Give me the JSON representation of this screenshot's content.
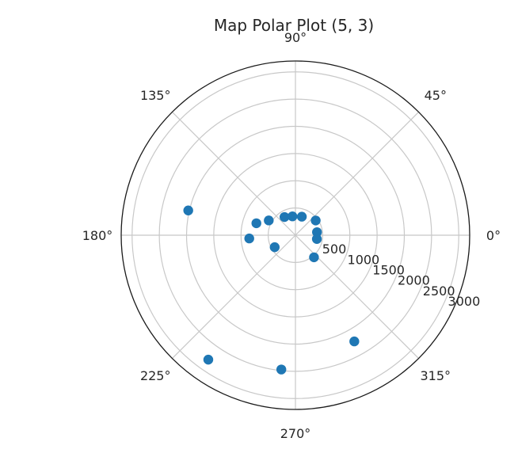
{
  "chart_data": {
    "type": "scatter",
    "projection": "polar",
    "title": "Map Polar Plot (5, 3)",
    "theta_unit": "degrees",
    "theta_ticks": [
      "0°",
      "45°",
      "90°",
      "135°",
      "180°",
      "225°",
      "270°",
      "315°"
    ],
    "theta_tick_values": [
      0,
      45,
      90,
      135,
      180,
      225,
      270,
      315
    ],
    "r_ticks": [
      "500",
      "1000",
      "1500",
      "2000",
      "2500",
      "3000"
    ],
    "r_tick_values": [
      500,
      1000,
      1500,
      2000,
      2500,
      3000
    ],
    "rlim": [
      0,
      3200
    ],
    "grid": true,
    "series": [
      {
        "color": "#1f77b4",
        "points": [
          {
            "theta": 167,
            "r": 2020
          },
          {
            "theta": 163,
            "r": 750
          },
          {
            "theta": 184,
            "r": 850
          },
          {
            "theta": 151,
            "r": 560
          },
          {
            "theta": 121,
            "r": 390
          },
          {
            "theta": 99,
            "r": 350
          },
          {
            "theta": 71,
            "r": 360
          },
          {
            "theta": 36,
            "r": 460
          },
          {
            "theta": 8,
            "r": 400
          },
          {
            "theta": 350,
            "r": 400
          },
          {
            "theta": 210,
            "r": 440
          },
          {
            "theta": 310,
            "r": 530
          },
          {
            "theta": 299,
            "r": 2230
          },
          {
            "theta": 264,
            "r": 2480
          },
          {
            "theta": 235,
            "r": 2790
          }
        ]
      }
    ]
  }
}
